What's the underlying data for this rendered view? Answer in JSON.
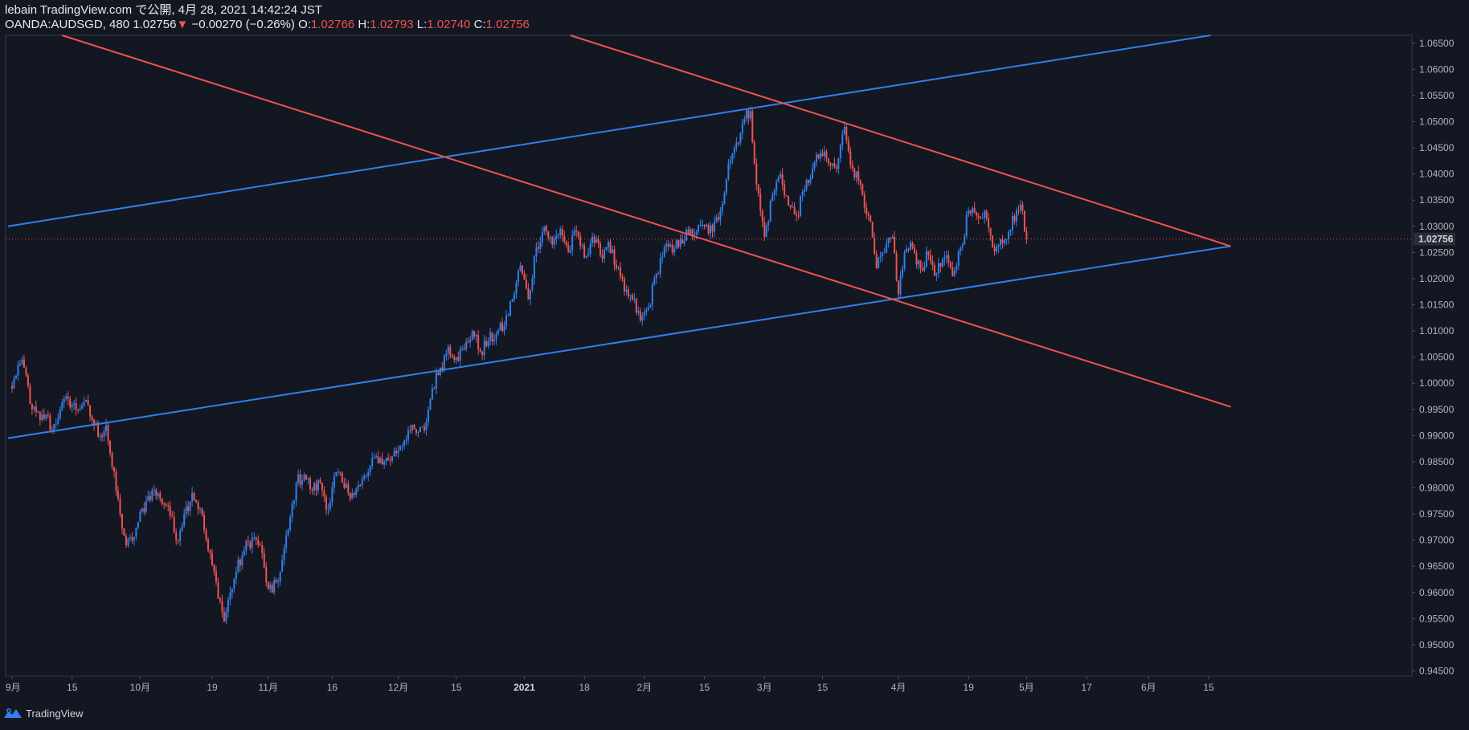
{
  "header": {
    "publisher_line": "lebain TradingView.com で公開, 4月 28, 2021 14:42:24 JST",
    "symbol_line_prefix": "OANDA:AUDSGD, 480 1.02756",
    "change_marker": "▼",
    "change_text": "−0.00270 (−0.26%)",
    "open_label": "O:",
    "open_value": "1.02766",
    "high_label": "H:",
    "high_value": "1.02793",
    "low_label": "L:",
    "low_value": "1.02740",
    "close_label": "C:",
    "close_value": "1.02756"
  },
  "footer": {
    "brand": "TradingView",
    "brand_icon": "tradingview-logo-icon"
  },
  "colors": {
    "background": "#131722",
    "up": "#2f80ed",
    "down": "#ef5350",
    "trend_blue": "#2f80ed",
    "trend_red": "#ef5350",
    "axis_text": "#b2b5be",
    "badge_bg": "#2a2e39"
  },
  "chart_data": {
    "type": "candlestick",
    "symbol": "OANDA:AUDSGD",
    "interval": "480",
    "last_price": "1.02756",
    "last_price_value": 1.02756,
    "ylim": [
      0.944,
      1.0665
    ],
    "y_ticks": [
      "1.06500",
      "1.06000",
      "1.05500",
      "1.05000",
      "1.04500",
      "1.04000",
      "1.03500",
      "1.03000",
      "1.02500",
      "1.02000",
      "1.01500",
      "1.01000",
      "1.00500",
      "1.00000",
      "0.99500",
      "0.99000",
      "0.98500",
      "0.98000",
      "0.97500",
      "0.97000",
      "0.96500",
      "0.96000",
      "0.95500",
      "0.95000",
      "0.94500"
    ],
    "x_ticks": [
      {
        "label": "9月",
        "idx": 0
      },
      {
        "label": "15",
        "idx": 30
      },
      {
        "label": "10月",
        "idx": 64
      },
      {
        "label": "19",
        "idx": 100
      },
      {
        "label": "11月",
        "idx": 128
      },
      {
        "label": "16",
        "idx": 160
      },
      {
        "label": "12月",
        "idx": 193
      },
      {
        "label": "15",
        "idx": 222
      },
      {
        "label": "2021",
        "idx": 256,
        "bold": true
      },
      {
        "label": "18",
        "idx": 286
      },
      {
        "label": "2月",
        "idx": 316
      },
      {
        "label": "15",
        "idx": 346
      },
      {
        "label": "3月",
        "idx": 376
      },
      {
        "label": "15",
        "idx": 405
      },
      {
        "label": "4月",
        "idx": 443
      },
      {
        "label": "19",
        "idx": 478
      },
      {
        "label": "5月",
        "idx": 507
      },
      {
        "label": "17",
        "idx": 537
      },
      {
        "label": "6月",
        "idx": 568
      },
      {
        "label": "15",
        "idx": 598
      }
    ],
    "close_anchors": [
      [
        0,
        0.999
      ],
      [
        3,
        1.0035
      ],
      [
        6,
        1.003
      ],
      [
        10,
        0.995
      ],
      [
        14,
        0.993
      ],
      [
        17,
        0.994
      ],
      [
        20,
        0.991
      ],
      [
        24,
        0.995
      ],
      [
        28,
        0.997
      ],
      [
        32,
        0.995
      ],
      [
        36,
        0.9965
      ],
      [
        40,
        0.993
      ],
      [
        44,
        0.99
      ],
      [
        47,
        0.992
      ],
      [
        50,
        0.984
      ],
      [
        54,
        0.975
      ],
      [
        57,
        0.969
      ],
      [
        60,
        0.97
      ],
      [
        63,
        0.9735
      ],
      [
        67,
        0.9775
      ],
      [
        70,
        0.9795
      ],
      [
        74,
        0.978
      ],
      [
        78,
        0.9765
      ],
      [
        82,
        0.97
      ],
      [
        86,
        0.975
      ],
      [
        90,
        0.979
      ],
      [
        94,
        0.976
      ],
      [
        98,
        0.968
      ],
      [
        102,
        0.962
      ],
      [
        106,
        0.9545
      ],
      [
        109,
        0.96
      ],
      [
        112,
        0.964
      ],
      [
        116,
        0.968
      ],
      [
        120,
        0.9705
      ],
      [
        124,
        0.969
      ],
      [
        127,
        0.962
      ],
      [
        130,
        0.96
      ],
      [
        134,
        0.964
      ],
      [
        138,
        0.972
      ],
      [
        142,
        0.981
      ],
      [
        146,
        0.9825
      ],
      [
        150,
        0.9795
      ],
      [
        154,
        0.981
      ],
      [
        158,
        0.976
      ],
      [
        162,
        0.983
      ],
      [
        166,
        0.98
      ],
      [
        170,
        0.979
      ],
      [
        174,
        0.9805
      ],
      [
        178,
        0.983
      ],
      [
        182,
        0.986
      ],
      [
        186,
        0.985
      ],
      [
        190,
        0.986
      ],
      [
        194,
        0.988
      ],
      [
        198,
        0.991
      ],
      [
        202,
        0.9905
      ],
      [
        206,
        0.991
      ],
      [
        210,
        0.999
      ],
      [
        214,
        1.003
      ],
      [
        218,
        1.007
      ],
      [
        222,
        1.005
      ],
      [
        226,
        1.0065
      ],
      [
        230,
        1.01
      ],
      [
        234,
        1.006
      ],
      [
        238,
        1.008
      ],
      [
        242,
        1.0095
      ],
      [
        246,
        1.011
      ],
      [
        250,
        1.016
      ],
      [
        254,
        1.0225
      ],
      [
        258,
        1.016
      ],
      [
        262,
        1.026
      ],
      [
        266,
        1.03
      ],
      [
        270,
        1.0265
      ],
      [
        274,
        1.0295
      ],
      [
        278,
        1.025
      ],
      [
        282,
        1.029
      ],
      [
        286,
        1.024
      ],
      [
        290,
        1.028
      ],
      [
        294,
        1.0245
      ],
      [
        298,
        1.027
      ],
      [
        302,
        1.022
      ],
      [
        306,
        1.0175
      ],
      [
        310,
        1.016
      ],
      [
        314,
        1.012
      ],
      [
        318,
        1.0145
      ],
      [
        322,
        1.021
      ],
      [
        326,
        1.026
      ],
      [
        330,
        1.025
      ],
      [
        334,
        1.0275
      ],
      [
        338,
        1.0285
      ],
      [
        342,
        1.029
      ],
      [
        346,
        1.03
      ],
      [
        350,
        1.029
      ],
      [
        354,
        1.033
      ],
      [
        358,
        1.042
      ],
      [
        362,
        1.046
      ],
      [
        366,
        1.0505
      ],
      [
        369,
        1.052
      ],
      [
        372,
        1.038
      ],
      [
        376,
        1.028
      ],
      [
        380,
        1.036
      ],
      [
        384,
        1.04
      ],
      [
        388,
        1.034
      ],
      [
        392,
        1.032
      ],
      [
        396,
        1.037
      ],
      [
        400,
        1.041
      ],
      [
        404,
        1.044
      ],
      [
        408,
        1.042
      ],
      [
        412,
        1.041
      ],
      [
        416,
        1.049
      ],
      [
        420,
        1.041
      ],
      [
        424,
        1.038
      ],
      [
        428,
        1.032
      ],
      [
        432,
        1.022
      ],
      [
        436,
        1.025
      ],
      [
        440,
        1.028
      ],
      [
        443,
        1.017
      ],
      [
        446,
        1.025
      ],
      [
        450,
        1.026
      ],
      [
        454,
        1.022
      ],
      [
        458,
        1.0245
      ],
      [
        462,
        1.021
      ],
      [
        466,
        1.024
      ],
      [
        470,
        1.0205
      ],
      [
        474,
        1.026
      ],
      [
        478,
        1.033
      ],
      [
        482,
        1.032
      ],
      [
        486,
        1.033
      ],
      [
        490,
        1.026
      ],
      [
        494,
        1.0275
      ],
      [
        498,
        1.029
      ],
      [
        502,
        1.033
      ],
      [
        505,
        1.033
      ],
      [
        507,
        1.0276
      ]
    ],
    "trendlines": [
      {
        "name": "upper-channel-blue",
        "color": "blue",
        "p1": [
          -2,
          1.03
        ],
        "p2": [
          599,
          1.0665
        ]
      },
      {
        "name": "lower-channel-blue",
        "color": "blue",
        "p1": [
          -2,
          0.9895
        ],
        "p2": [
          609,
          1.0262
        ]
      },
      {
        "name": "long-descending-red",
        "color": "red",
        "p1": [
          25,
          1.0665
        ],
        "p2": [
          609,
          0.9955
        ]
      },
      {
        "name": "upper-descending-red",
        "color": "red",
        "p1": [
          279,
          1.0665
        ],
        "p2": [
          609,
          1.0262
        ]
      }
    ]
  }
}
